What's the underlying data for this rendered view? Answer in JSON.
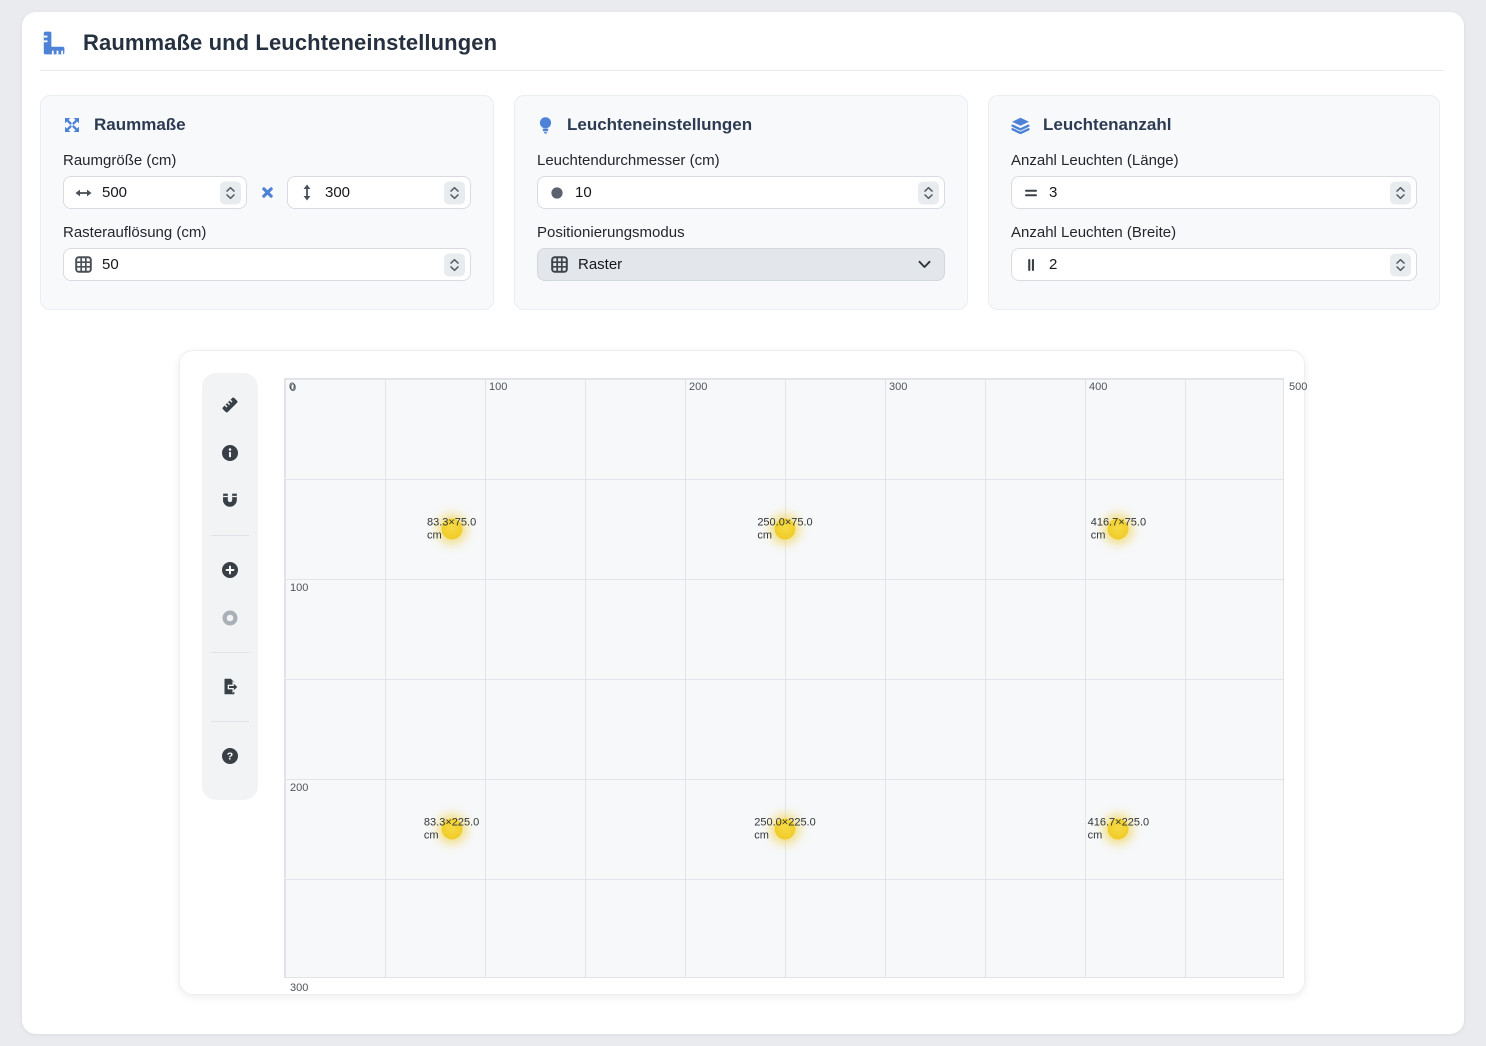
{
  "header": {
    "title": "Raummaße und Leuchteneinstellungen",
    "icon": "ruler-combined-icon"
  },
  "panels": {
    "room": {
      "icon": "expand-arrows-icon",
      "title": "Raummaße",
      "size_label": "Raumgröße (cm)",
      "width_value": "500",
      "multiply_sign": "×",
      "height_value": "300",
      "resolution_label": "Rasterauflösung (cm)",
      "resolution_value": "50"
    },
    "lights": {
      "icon": "lightbulb-icon",
      "title": "Leuchteneinstellungen",
      "diameter_label": "Leuchtendurchmesser (cm)",
      "diameter_value": "10",
      "mode_label": "Positionierungsmodus",
      "mode_value": "Raster"
    },
    "count": {
      "icon": "layers-icon",
      "title": "Leuchtenanzahl",
      "length_label": "Anzahl Leuchten (Länge)",
      "length_value": "3",
      "width_label": "Anzahl Leuchten (Breite)",
      "width_value": "2"
    }
  },
  "toolbar": {
    "buttons": [
      {
        "icon": "ruler-icon"
      },
      {
        "icon": "info-icon"
      },
      {
        "icon": "magnet-icon"
      },
      {
        "icon": "add-light-icon"
      },
      {
        "icon": "center-light-icon",
        "disabled": true
      },
      {
        "icon": "export-icon"
      },
      {
        "icon": "help-icon"
      }
    ]
  },
  "plan": {
    "room_width_cm": 500,
    "room_height_cm": 300,
    "grid_step_cm": 50,
    "x_ticks": [
      0,
      100,
      200,
      300,
      400,
      500
    ],
    "y_ticks": [
      0,
      100,
      200,
      300
    ],
    "lights": [
      {
        "x_cm": 83.3,
        "y_cm": 75.0,
        "label": "83.3×75.0",
        "unit": "cm"
      },
      {
        "x_cm": 250.0,
        "y_cm": 75.0,
        "label": "250.0×75.0",
        "unit": "cm"
      },
      {
        "x_cm": 416.7,
        "y_cm": 75.0,
        "label": "416.7×75.0",
        "unit": "cm"
      },
      {
        "x_cm": 83.3,
        "y_cm": 225.0,
        "label": "83.3×225.0",
        "unit": "cm"
      },
      {
        "x_cm": 250.0,
        "y_cm": 225.0,
        "label": "250.0×225.0",
        "unit": "cm"
      },
      {
        "x_cm": 416.7,
        "y_cm": 225.0,
        "label": "416.7×225.0",
        "unit": "cm"
      }
    ]
  },
  "colors": {
    "accent": "#4d82d6",
    "light_fill": "#f0cc29",
    "light_glow": "rgba(240,204,41,0.5)",
    "grid_line": "#e1e4e8",
    "plot_bg": "#f7f8f9"
  }
}
